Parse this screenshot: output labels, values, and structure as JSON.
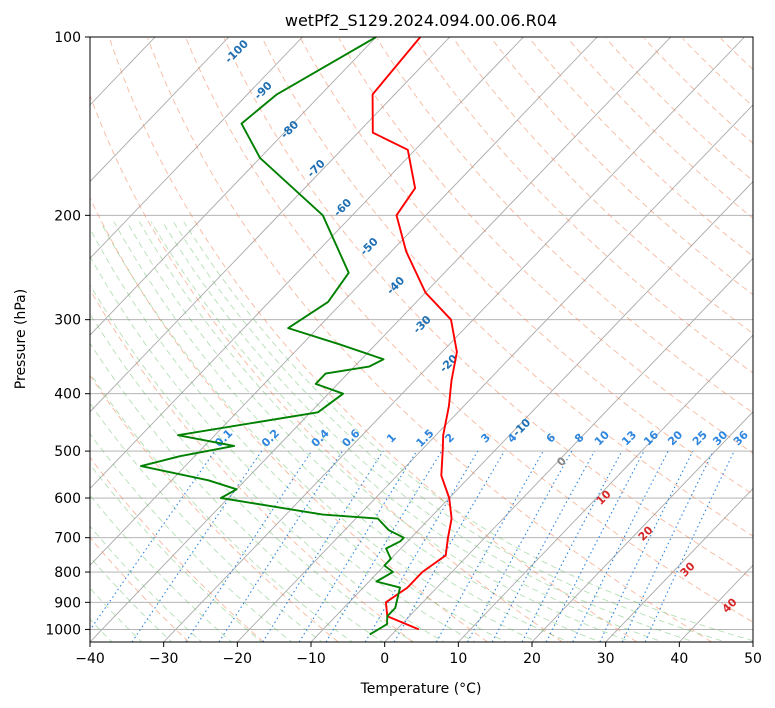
{
  "chart_data": {
    "type": "line",
    "subtype": "skew-t log-p",
    "title": "wetPf2_S129.2024.094.00.06.R04",
    "xlabel": "Temperature (°C)",
    "ylabel": "Pressure (hPa)",
    "xlim": [
      -40,
      50
    ],
    "ylim": [
      1050,
      100
    ],
    "y_scale": "log",
    "grid": true,
    "x_ticks": [
      -40,
      -30,
      -20,
      -10,
      0,
      10,
      20,
      30,
      40,
      50
    ],
    "x_tick_labels": [
      "−40",
      "−30",
      "−20",
      "−10",
      "0",
      "10",
      "20",
      "30",
      "40",
      "50"
    ],
    "y_ticks": [
      100,
      200,
      300,
      400,
      500,
      600,
      700,
      800,
      900,
      1000
    ],
    "y_tick_labels": [
      "100",
      "200",
      "300",
      "400",
      "500",
      "600",
      "700",
      "800",
      "900",
      "1000"
    ],
    "series": [
      {
        "color": "#ff0000",
        "points": [
          [
            -74,
            100
          ],
          [
            -73,
            125
          ],
          [
            -68,
            145
          ],
          [
            -61,
            155
          ],
          [
            -55,
            180
          ],
          [
            -54,
            200
          ],
          [
            -48,
            230
          ],
          [
            -40,
            270
          ],
          [
            -33,
            300
          ],
          [
            -28,
            340
          ],
          [
            -25,
            380
          ],
          [
            -22,
            420
          ],
          [
            -19,
            470
          ],
          [
            -17,
            500
          ],
          [
            -14,
            550
          ],
          [
            -10,
            600
          ],
          [
            -7,
            650
          ],
          [
            -5,
            700
          ],
          [
            -3,
            750
          ],
          [
            -4,
            800
          ],
          [
            -4,
            850
          ],
          [
            -5,
            900
          ],
          [
            -3,
            950
          ],
          [
            3,
            1000
          ]
        ]
      },
      {
        "color": "#008000",
        "points": [
          [
            -80,
            100
          ],
          [
            -86,
            125
          ],
          [
            -87,
            140
          ],
          [
            -80,
            160
          ],
          [
            -64,
            200
          ],
          [
            -53,
            250
          ],
          [
            -52,
            280
          ],
          [
            -54,
            310
          ],
          [
            -45,
            330
          ],
          [
            -37,
            350
          ],
          [
            -38,
            360
          ],
          [
            -43,
            370
          ],
          [
            -43,
            385
          ],
          [
            -38,
            400
          ],
          [
            -39,
            430
          ],
          [
            -55,
            470
          ],
          [
            -46,
            490
          ],
          [
            -52,
            510
          ],
          [
            -56,
            530
          ],
          [
            -45,
            560
          ],
          [
            -40,
            580
          ],
          [
            -41,
            600
          ],
          [
            -25,
            640
          ],
          [
            -17,
            650
          ],
          [
            -14,
            680
          ],
          [
            -11,
            700
          ],
          [
            -11,
            710
          ],
          [
            -12,
            730
          ],
          [
            -10,
            760
          ],
          [
            -10,
            780
          ],
          [
            -8,
            800
          ],
          [
            -9,
            830
          ],
          [
            -5,
            850
          ],
          [
            -3,
            920
          ],
          [
            -3,
            950
          ],
          [
            -2,
            980
          ],
          [
            -3,
            1020
          ]
        ]
      }
    ],
    "dry_adiabat_labels": [
      "-100",
      "-90",
      "-80",
      "-70",
      "-60",
      "-50",
      "-40",
      "-30",
      "-20",
      "-10",
      "0",
      "10",
      "20",
      "30",
      "40"
    ],
    "mixing_ratio_labels": [
      "0.1",
      "0.2",
      "0.4",
      "0.6",
      "1",
      "1.5",
      "2",
      "3",
      "4",
      "6",
      "8",
      "10",
      "13",
      "16",
      "20",
      "25",
      "30",
      "36"
    ],
    "colors": {
      "temperature": "#ff0000",
      "dewpoint": "#008000",
      "isotherm": "#aaaaaa",
      "dry_adiabat": "#f08050",
      "moist_adiabat": "#5cb85c",
      "mixing_ratio": "#2e86de",
      "label_blue": "#1f6fb4",
      "label_red": "#d62728"
    }
  }
}
